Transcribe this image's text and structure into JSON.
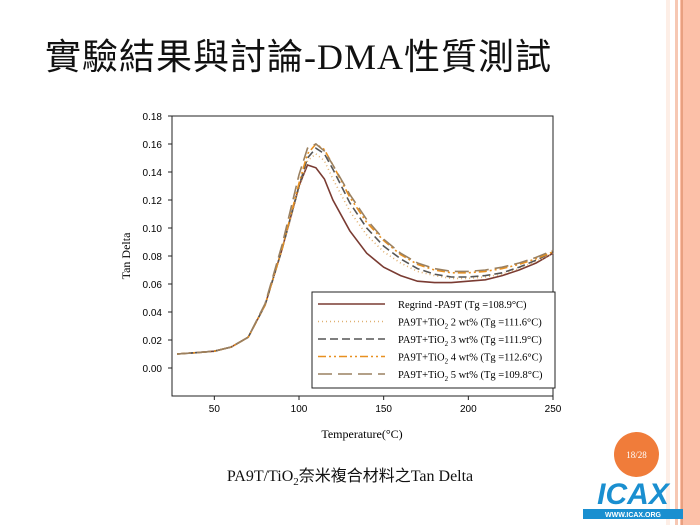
{
  "slide": {
    "title": "實驗結果與討論-DMA性質測試",
    "caption_pre": "PA9T/TiO",
    "caption_sub": "2",
    "caption_post": "奈米複合材料之Tan Delta",
    "page": "18/28",
    "logo_text": "ICAX",
    "logo_url": "WWW.ICAX.ORG"
  },
  "colors": {
    "stripe": "#fcc0a8",
    "badge": "#f07c3a",
    "logo": "#1a8fd0"
  },
  "chart_data": {
    "type": "line",
    "xlabel": "Temperature(°C)",
    "ylabel": "Tan Delta",
    "xlim": [
      25,
      250
    ],
    "ylim": [
      -0.02,
      0.18
    ],
    "xticks": [
      50,
      100,
      150,
      200,
      250
    ],
    "yticks": [
      "0.00",
      "0.02",
      "0.04",
      "0.06",
      "0.08",
      "0.10",
      "0.12",
      "0.14",
      "0.16",
      "0.18"
    ],
    "legend_position": "bottom-right",
    "x": [
      28,
      40,
      50,
      60,
      70,
      80,
      90,
      100,
      105,
      110,
      115,
      120,
      130,
      140,
      150,
      160,
      170,
      180,
      190,
      200,
      210,
      220,
      230,
      240,
      250
    ],
    "series": [
      {
        "name": "Regrind -PA9T",
        "tg": "(Tg =108.9°C)",
        "label_pre": "Regrind -PA9T",
        "label_sub": "",
        "label_post": "     (Tg =108.9°C)",
        "color": "#7a3b32",
        "dash": "",
        "values": [
          0.01,
          0.011,
          0.012,
          0.015,
          0.022,
          0.045,
          0.085,
          0.13,
          0.145,
          0.143,
          0.135,
          0.12,
          0.098,
          0.082,
          0.072,
          0.066,
          0.062,
          0.061,
          0.061,
          0.062,
          0.063,
          0.066,
          0.07,
          0.075,
          0.082
        ]
      },
      {
        "name": "PA9T+TiO2 2 wt%",
        "label_pre": "PA9T+TiO",
        "label_sub": "2",
        "label_post": " 2 wt% (Tg =111.6°C)",
        "color": "#e0b070",
        "dash": "1 3",
        "values": [
          0.01,
          0.011,
          0.012,
          0.015,
          0.022,
          0.045,
          0.085,
          0.128,
          0.148,
          0.153,
          0.148,
          0.135,
          0.112,
          0.095,
          0.083,
          0.075,
          0.069,
          0.066,
          0.064,
          0.064,
          0.065,
          0.067,
          0.071,
          0.076,
          0.082
        ]
      },
      {
        "name": "PA9T+TiO2 3 wt%",
        "label_pre": "PA9T+TiO",
        "label_sub": "2",
        "label_post": " 3 wt% (Tg =111.9°C)",
        "color": "#555",
        "dash": "8 4",
        "values": [
          0.01,
          0.011,
          0.012,
          0.015,
          0.022,
          0.045,
          0.085,
          0.13,
          0.15,
          0.157,
          0.153,
          0.142,
          0.118,
          0.1,
          0.087,
          0.078,
          0.071,
          0.067,
          0.065,
          0.065,
          0.066,
          0.068,
          0.072,
          0.077,
          0.083
        ]
      },
      {
        "name": "PA9T+TiO2 4 wt%",
        "label_pre": "PA9T+TiO",
        "label_sub": "2",
        "label_post": " 4 wt% (Tg =112.6°C)",
        "color": "#e89020",
        "dash": "8 3 2 3 2 3",
        "values": [
          0.01,
          0.011,
          0.012,
          0.015,
          0.022,
          0.045,
          0.085,
          0.132,
          0.153,
          0.16,
          0.156,
          0.145,
          0.122,
          0.104,
          0.091,
          0.081,
          0.074,
          0.07,
          0.068,
          0.068,
          0.069,
          0.071,
          0.074,
          0.078,
          0.083
        ]
      },
      {
        "name": "PA9T+TiO2 5 wt%",
        "label_pre": "PA9T+TiO",
        "label_sub": "2",
        "label_post": " 5 wt% (Tg =109.8°C)",
        "color": "#9a8060",
        "dash": "14 6",
        "values": [
          0.01,
          0.011,
          0.012,
          0.015,
          0.022,
          0.046,
          0.088,
          0.138,
          0.157,
          0.16,
          0.155,
          0.145,
          0.124,
          0.106,
          0.092,
          0.082,
          0.075,
          0.071,
          0.069,
          0.069,
          0.07,
          0.072,
          0.075,
          0.079,
          0.084
        ]
      }
    ]
  }
}
